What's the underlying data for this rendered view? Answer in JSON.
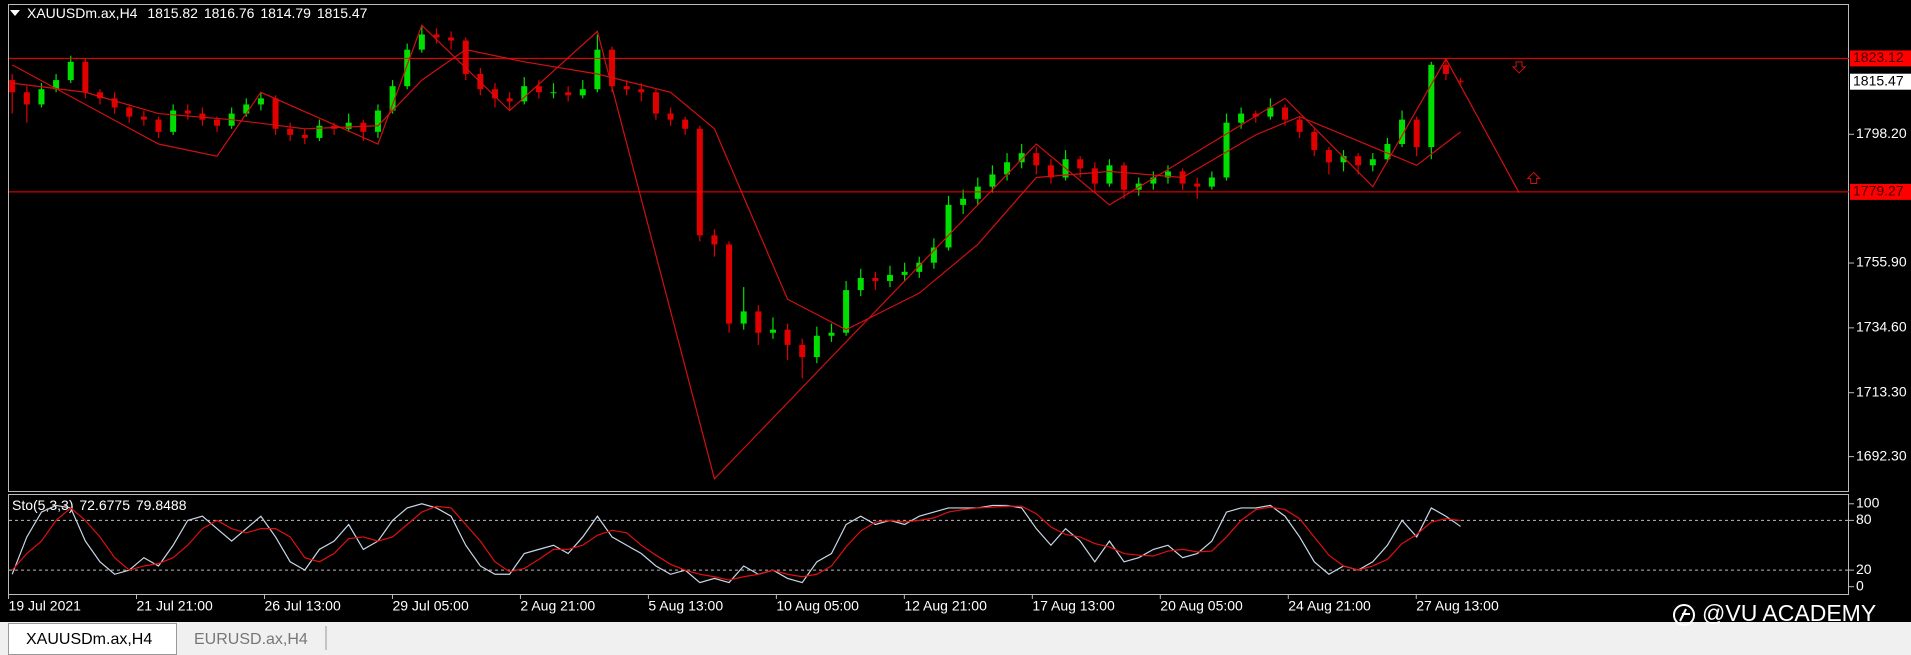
{
  "symbol_header": "XAUUSDm.ax,H4",
  "chart_data": {
    "type": "candlestick",
    "up_color": "#00e000",
    "down_color": "#e00000",
    "candles": [
      [
        1816,
        1818,
        1805,
        1812
      ],
      [
        1812,
        1814,
        1802,
        1808
      ],
      [
        1808,
        1815,
        1807,
        1813
      ],
      [
        1813,
        1818,
        1812,
        1816
      ],
      [
        1816,
        1824,
        1815,
        1822
      ],
      [
        1822,
        1823,
        1810,
        1812
      ],
      [
        1812,
        1813,
        1808,
        1810
      ],
      [
        1810,
        1812,
        1805,
        1807
      ],
      [
        1807,
        1808,
        1802,
        1804
      ],
      [
        1804,
        1806,
        1801,
        1803
      ],
      [
        1803,
        1804,
        1797,
        1799
      ],
      [
        1799,
        1808,
        1798,
        1806
      ],
      [
        1806,
        1808,
        1803,
        1805
      ],
      [
        1805,
        1807,
        1801,
        1803
      ],
      [
        1803,
        1804,
        1799,
        1801
      ],
      [
        1801,
        1807,
        1800,
        1805
      ],
      [
        1805,
        1810,
        1804,
        1808
      ],
      [
        1808,
        1812,
        1806,
        1810
      ],
      [
        1810,
        1811,
        1798,
        1800
      ],
      [
        1800,
        1802,
        1796,
        1798
      ],
      [
        1798,
        1800,
        1795,
        1797
      ],
      [
        1797,
        1803,
        1796,
        1801
      ],
      [
        1801,
        1802,
        1798,
        1800
      ],
      [
        1800,
        1805,
        1799,
        1802
      ],
      [
        1802,
        1803,
        1796,
        1799
      ],
      [
        1799,
        1808,
        1797,
        1806
      ],
      [
        1806,
        1816,
        1805,
        1814
      ],
      [
        1814,
        1828,
        1813,
        1826
      ],
      [
        1826,
        1834,
        1825,
        1831
      ],
      [
        1831,
        1833,
        1828,
        1830
      ],
      [
        1830,
        1832,
        1826,
        1829
      ],
      [
        1829,
        1830,
        1816,
        1818
      ],
      [
        1818,
        1820,
        1811,
        1813
      ],
      [
        1813,
        1815,
        1807,
        1810
      ],
      [
        1810,
        1812,
        1806,
        1809
      ],
      [
        1809,
        1817,
        1808,
        1814
      ],
      [
        1814,
        1816,
        1810,
        1812
      ],
      [
        1812,
        1815,
        1810,
        1812
      ],
      [
        1812,
        1814,
        1809,
        1811
      ],
      [
        1811,
        1816,
        1810,
        1813
      ],
      [
        1813,
        1831,
        1812,
        1826
      ],
      [
        1826,
        1827,
        1812,
        1814
      ],
      [
        1814,
        1816,
        1811,
        1813
      ],
      [
        1813,
        1815,
        1809,
        1812
      ],
      [
        1812,
        1813,
        1803,
        1805
      ],
      [
        1805,
        1807,
        1801,
        1803
      ],
      [
        1803,
        1804,
        1798,
        1800
      ],
      [
        1800,
        1801,
        1763,
        1765
      ],
      [
        1765,
        1767,
        1758,
        1762
      ],
      [
        1762,
        1763,
        1733,
        1736
      ],
      [
        1736,
        1748,
        1734,
        1740
      ],
      [
        1740,
        1742,
        1729,
        1733
      ],
      [
        1733,
        1738,
        1731,
        1734
      ],
      [
        1734,
        1736,
        1724,
        1729
      ],
      [
        1729,
        1731,
        1718,
        1725
      ],
      [
        1725,
        1735,
        1723,
        1732
      ],
      [
        1732,
        1736,
        1730,
        1733
      ],
      [
        1733,
        1750,
        1732,
        1747
      ],
      [
        1747,
        1754,
        1745,
        1751
      ],
      [
        1751,
        1753,
        1747,
        1750
      ],
      [
        1750,
        1755,
        1748,
        1752
      ],
      [
        1752,
        1756,
        1750,
        1753
      ],
      [
        1753,
        1758,
        1751,
        1756
      ],
      [
        1756,
        1764,
        1754,
        1761
      ],
      [
        1761,
        1778,
        1760,
        1775
      ],
      [
        1775,
        1780,
        1772,
        1777
      ],
      [
        1777,
        1784,
        1775,
        1781
      ],
      [
        1781,
        1788,
        1779,
        1785
      ],
      [
        1785,
        1792,
        1783,
        1789
      ],
      [
        1789,
        1795,
        1787,
        1792
      ],
      [
        1792,
        1794,
        1785,
        1788
      ],
      [
        1788,
        1790,
        1782,
        1784
      ],
      [
        1784,
        1793,
        1783,
        1790
      ],
      [
        1790,
        1791,
        1784,
        1787
      ],
      [
        1787,
        1789,
        1779,
        1782
      ],
      [
        1782,
        1790,
        1781,
        1788
      ],
      [
        1788,
        1789,
        1777,
        1780
      ],
      [
        1780,
        1784,
        1778,
        1782
      ],
      [
        1782,
        1786,
        1780,
        1784
      ],
      [
        1784,
        1788,
        1782,
        1786
      ],
      [
        1786,
        1787,
        1780,
        1782
      ],
      [
        1782,
        1784,
        1777,
        1781
      ],
      [
        1781,
        1786,
        1780,
        1784
      ],
      [
        1784,
        1805,
        1783,
        1802
      ],
      [
        1802,
        1807,
        1800,
        1805
      ],
      [
        1805,
        1806,
        1802,
        1804
      ],
      [
        1804,
        1810,
        1803,
        1807
      ],
      [
        1807,
        1808,
        1801,
        1803
      ],
      [
        1803,
        1804,
        1797,
        1799
      ],
      [
        1799,
        1800,
        1791,
        1793
      ],
      [
        1793,
        1794,
        1785,
        1789
      ],
      [
        1789,
        1793,
        1786,
        1791
      ],
      [
        1791,
        1792,
        1785,
        1788
      ],
      [
        1788,
        1792,
        1786,
        1790
      ],
      [
        1790,
        1797,
        1789,
        1795
      ],
      [
        1795,
        1806,
        1794,
        1803
      ],
      [
        1803,
        1804,
        1791,
        1794
      ],
      [
        1794,
        1822,
        1790,
        1821
      ],
      [
        1821,
        1823.12,
        1816,
        1818
      ],
      [
        1815.82,
        1816.76,
        1814.79,
        1815.47
      ]
    ],
    "ylim": [
      1681,
      1841
    ],
    "yticks": [
      {
        "value": 1692.3,
        "label": "1692.30"
      },
      {
        "value": 1713.3,
        "label": "1713.30"
      },
      {
        "value": 1734.6,
        "label": "1734.60"
      },
      {
        "value": 1755.9,
        "label": "1755.90"
      },
      {
        "value": 1798.2,
        "label": "1798.20"
      }
    ],
    "levels": [
      1823.12,
      1779.27
    ],
    "level_color": "#ff0000",
    "line_color": "#d01010",
    "zigzag": [
      [
        0,
        1821
      ],
      [
        10,
        1795
      ],
      [
        14,
        1791
      ],
      [
        17,
        1812
      ],
      [
        25,
        1795
      ],
      [
        28,
        1834
      ],
      [
        34,
        1806
      ],
      [
        40,
        1832
      ],
      [
        48,
        1685
      ],
      [
        70,
        1795
      ],
      [
        75,
        1775
      ],
      [
        87,
        1810
      ],
      [
        93,
        1781
      ],
      [
        98,
        1823
      ],
      [
        103,
        1779
      ]
    ],
    "ma": [
      [
        0,
        1815
      ],
      [
        5,
        1812
      ],
      [
        10,
        1805
      ],
      [
        15,
        1803
      ],
      [
        20,
        1800
      ],
      [
        25,
        1801
      ],
      [
        28,
        1816
      ],
      [
        31,
        1826
      ],
      [
        35,
        1822
      ],
      [
        40,
        1818
      ],
      [
        45,
        1812
      ],
      [
        48,
        1800
      ],
      [
        53,
        1744
      ],
      [
        57,
        1734
      ],
      [
        62,
        1746
      ],
      [
        66,
        1762
      ],
      [
        70,
        1784
      ],
      [
        75,
        1786
      ],
      [
        80,
        1784
      ],
      [
        85,
        1798
      ],
      [
        88,
        1804
      ],
      [
        92,
        1796
      ],
      [
        96,
        1788
      ],
      [
        99,
        1799
      ]
    ],
    "down_arrows": [
      [
        103,
        1820
      ]
    ],
    "up_arrows": [
      [
        104,
        1784
      ]
    ],
    "x_labels": [
      "19 Jul 2021",
      "21 Jul 21:00",
      "26 Jul 13:00",
      "29 Jul 05:00",
      "2 Aug 21:00",
      "5 Aug 13:00",
      "10 Aug 05:00",
      "12 Aug 21:00",
      "17 Aug 13:00",
      "20 Aug 05:00",
      "24 Aug 21:00",
      "27 Aug 13:00"
    ]
  },
  "oscillator": {
    "type": "line",
    "title": "Sto(5,3,3)",
    "ylim": [
      -8.8,
      111.8
    ],
    "yticks": [
      0,
      20,
      80,
      100
    ],
    "dashed_levels": [
      20,
      80
    ],
    "series": [
      {
        "color": "#c8d8e8",
        "values": [
          15,
          60,
          90,
          98,
          95,
          55,
          30,
          15,
          20,
          35,
          25,
          50,
          80,
          85,
          70,
          55,
          70,
          85,
          60,
          30,
          20,
          45,
          55,
          75,
          45,
          55,
          80,
          95,
          100,
          95,
          85,
          50,
          25,
          15,
          15,
          40,
          45,
          50,
          40,
          60,
          85,
          60,
          50,
          40,
          25,
          15,
          20,
          5,
          10,
          5,
          25,
          15,
          20,
          10,
          5,
          30,
          40,
          75,
          85,
          75,
          80,
          75,
          85,
          90,
          95,
          95,
          95,
          98,
          98,
          95,
          70,
          50,
          70,
          55,
          30,
          55,
          30,
          35,
          45,
          50,
          35,
          40,
          55,
          90,
          95,
          95,
          98,
          85,
          60,
          30,
          15,
          25,
          20,
          30,
          50,
          80,
          60,
          95,
          85,
          72.6775
        ]
      },
      {
        "color": "#e01010",
        "values": [
          20,
          40,
          55,
          80,
          95,
          80,
          60,
          35,
          20,
          25,
          28,
          35,
          50,
          70,
          80,
          70,
          65,
          70,
          70,
          60,
          35,
          30,
          40,
          58,
          60,
          55,
          60,
          75,
          90,
          97,
          95,
          75,
          55,
          30,
          18,
          22,
          33,
          45,
          45,
          50,
          62,
          68,
          65,
          50,
          38,
          27,
          20,
          15,
          12,
          8,
          12,
          15,
          20,
          15,
          12,
          15,
          25,
          48,
          67,
          78,
          80,
          78,
          80,
          83,
          90,
          93,
          95,
          96,
          97,
          97,
          88,
          72,
          63,
          60,
          52,
          48,
          40,
          38,
          37,
          43,
          45,
          42,
          43,
          60,
          80,
          93,
          96,
          93,
          82,
          60,
          38,
          25,
          20,
          25,
          33,
          52,
          63,
          78,
          82,
          79.8488
        ]
      }
    ]
  },
  "tabs": [
    "XAUUSDm.ax,H4",
    "EURUSD.ax,H4"
  ],
  "watermark": "@VU ACADEMY"
}
